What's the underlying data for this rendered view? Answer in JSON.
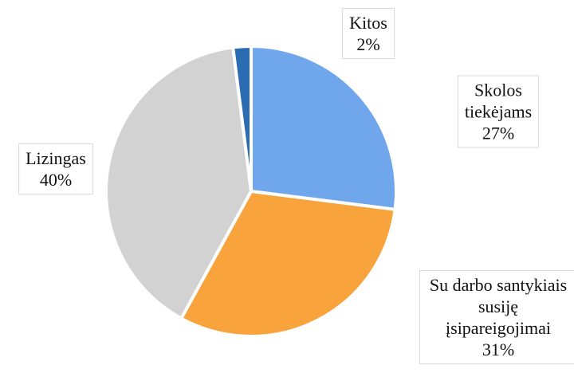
{
  "chart_data": {
    "type": "pie",
    "categories": [
      "Skolos tiekėjams",
      "Su darbo santykiais susiję įsipareigojimai",
      "Lizingas",
      "Kitos"
    ],
    "values": [
      27,
      31,
      40,
      2
    ],
    "value_labels": [
      "27%",
      "31%",
      "40%",
      "2%"
    ],
    "colors": [
      "#6fa6ec",
      "#f9a33c",
      "#d2d2d2",
      "#2b6cb3"
    ]
  }
}
